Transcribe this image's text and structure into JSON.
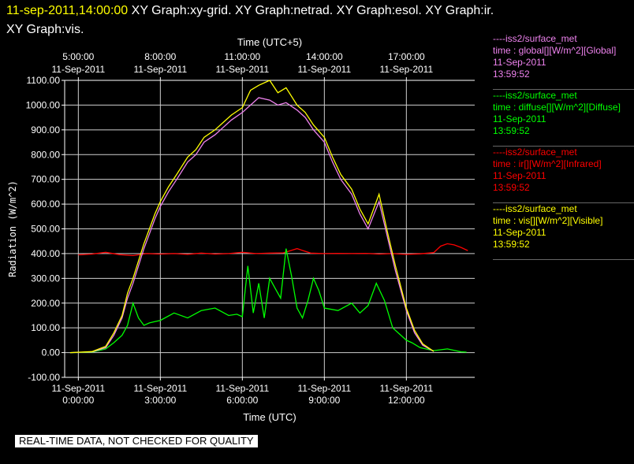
{
  "header": {
    "timestamp": "11-sep-2011,14:00:00",
    "graphs_line1": "XY Graph:xy-grid.  XY Graph:netrad.  XY Graph:esol.  XY Graph:ir.",
    "graphs_line2": "XY Graph:vis."
  },
  "footer": {
    "notice": "REAL-TIME DATA, NOT CHECKED FOR QUALITY"
  },
  "legend": [
    {
      "source": "----iss2/surface_met",
      "variable": "time : global[][W/m^2][Global]",
      "date": "11-Sep-2011",
      "time": "13:59:52",
      "color": "#ee82ee"
    },
    {
      "source": "----iss2/surface_met",
      "variable": "time : diffuse[][W/m^2][Diffuse]",
      "date": "11-Sep-2011",
      "time": "13:59:52",
      "color": "#00ff00"
    },
    {
      "source": "----iss2/surface_met",
      "variable": "time : ir[][W/m^2][Infrared]",
      "date": "11-Sep-2011",
      "time": "13:59:52",
      "color": "#ff0000"
    },
    {
      "source": "----iss2/surface_met",
      "variable": "time : vis[][W/m^2][Visible]",
      "date": "11-Sep-2011",
      "time": "13:59:52",
      "color": "#ffff00"
    }
  ],
  "chart_data": {
    "type": "line",
    "ylabel": "Radiation (W/m^2)",
    "xlabel_bottom": "Time (UTC)",
    "xlabel_top": "Time (UTC+5)",
    "ylim": [
      -100,
      1100
    ],
    "xlim_hours_utc": [
      -0.5,
      14.5
    ],
    "grid": true,
    "yticks": [
      "-100.00",
      "0.00",
      "100.00",
      "200.00",
      "300.00",
      "400.00",
      "500.00",
      "600.00",
      "700.00",
      "800.00",
      "900.00",
      "1000.00",
      "1100.00"
    ],
    "ytick_values": [
      -100,
      0,
      100,
      200,
      300,
      400,
      500,
      600,
      700,
      800,
      900,
      1000,
      1100
    ],
    "bottom_ticks": [
      {
        "hour": 0,
        "date": "11-Sep-2011",
        "time": "0:00:00"
      },
      {
        "hour": 3,
        "date": "11-Sep-2011",
        "time": "3:00:00"
      },
      {
        "hour": 6,
        "date": "11-Sep-2011",
        "time": "6:00:00"
      },
      {
        "hour": 9,
        "date": "11-Sep-2011",
        "time": "9:00:00"
      },
      {
        "hour": 12,
        "date": "11-Sep-2011",
        "time": "12:00:00"
      }
    ],
    "top_ticks": [
      {
        "hour": 0,
        "time": "5:00:00",
        "date": "11-Sep-2011"
      },
      {
        "hour": 3,
        "time": "8:00:00",
        "date": "11-Sep-2011"
      },
      {
        "hour": 6,
        "time": "11:00:00",
        "date": "11-Sep-2011"
      },
      {
        "hour": 9,
        "time": "14:00:00",
        "date": "11-Sep-2011"
      },
      {
        "hour": 12,
        "time": "17:00:00",
        "date": "11-Sep-2011"
      }
    ],
    "series": [
      {
        "name": "time : ir[][W/m^2][Infrared]",
        "color": "#ff0000",
        "x": [
          0,
          0.5,
          1,
          1.5,
          2,
          2.5,
          3,
          3.5,
          4,
          4.5,
          5,
          5.5,
          6,
          6.5,
          7,
          7.5,
          8,
          8.5,
          9,
          9.5,
          10,
          10.5,
          11,
          11.5,
          12,
          12.5,
          13,
          13.25,
          13.5,
          13.75,
          14,
          14.25
        ],
        "y": [
          395,
          398,
          405,
          396,
          392,
          400,
          398,
          400,
          397,
          402,
          398,
          400,
          405,
          400,
          402,
          403,
          420,
          402,
          400,
          401,
          400,
          401,
          398,
          400,
          397,
          399,
          404,
          430,
          440,
          435,
          425,
          412
        ]
      },
      {
        "name": "time : diffuse[][W/m^2][Diffuse]",
        "color": "#00ff00",
        "x": [
          -0.3,
          0.5,
          1,
          1.3,
          1.6,
          1.8,
          2,
          2.2,
          2.4,
          2.6,
          2.8,
          3,
          3.5,
          4,
          4.5,
          5,
          5.5,
          5.8,
          6,
          6.2,
          6.4,
          6.6,
          6.8,
          7,
          7.2,
          7.4,
          7.6,
          7.8,
          8,
          8.2,
          8.4,
          8.6,
          8.8,
          9,
          9.5,
          10,
          10.3,
          10.6,
          10.9,
          11.2,
          11.5,
          11.8,
          12,
          12.2,
          12.5,
          13,
          13.5,
          14,
          14.2
        ],
        "y": [
          0,
          2,
          15,
          40,
          70,
          110,
          200,
          140,
          110,
          120,
          125,
          130,
          160,
          140,
          170,
          180,
          150,
          155,
          145,
          350,
          160,
          280,
          140,
          300,
          260,
          220,
          420,
          310,
          180,
          140,
          210,
          300,
          250,
          180,
          170,
          200,
          160,
          190,
          280,
          210,
          100,
          70,
          50,
          40,
          20,
          8,
          15,
          3,
          2
        ]
      },
      {
        "name": "time : global[][W/m^2][Global]",
        "color": "#ee82ee",
        "x": [
          -0.3,
          0.5,
          1,
          1.3,
          1.6,
          1.8,
          2,
          2.2,
          2.4,
          2.6,
          2.8,
          3,
          3.3,
          3.6,
          4,
          4.3,
          4.6,
          5,
          5.3,
          5.6,
          6,
          6.3,
          6.6,
          7,
          7.3,
          7.6,
          8,
          8.3,
          8.6,
          9,
          9.3,
          9.6,
          10,
          10.3,
          10.6,
          11,
          11.3,
          11.6,
          12,
          12.3,
          12.6,
          13
        ],
        "y": [
          0,
          3,
          20,
          70,
          140,
          220,
          280,
          350,
          420,
          480,
          540,
          590,
          650,
          700,
          770,
          800,
          850,
          880,
          910,
          940,
          970,
          1000,
          1030,
          1020,
          1000,
          1010,
          980,
          950,
          900,
          850,
          770,
          700,
          640,
          560,
          500,
          610,
          470,
          330,
          170,
          80,
          30,
          5
        ]
      },
      {
        "name": "time : vis[][W/m^2][Visible]",
        "color": "#ffff00",
        "x": [
          -0.3,
          0.5,
          1,
          1.3,
          1.6,
          1.8,
          2,
          2.2,
          2.4,
          2.6,
          2.8,
          3,
          3.3,
          3.6,
          4,
          4.3,
          4.6,
          5,
          5.3,
          5.6,
          6,
          6.3,
          6.6,
          7,
          7.3,
          7.6,
          8,
          8.3,
          8.6,
          9,
          9.3,
          9.6,
          10,
          10.3,
          10.6,
          11,
          11.3,
          11.6,
          12,
          12.3,
          12.6,
          13
        ],
        "y": [
          0,
          4,
          25,
          80,
          150,
          240,
          300,
          370,
          440,
          500,
          560,
          610,
          670,
          720,
          790,
          820,
          870,
          900,
          930,
          960,
          990,
          1060,
          1080,
          1100,
          1050,
          1070,
          1000,
          970,
          920,
          870,
          790,
          720,
          660,
          580,
          520,
          640,
          490,
          350,
          180,
          90,
          35,
          5
        ]
      }
    ]
  }
}
